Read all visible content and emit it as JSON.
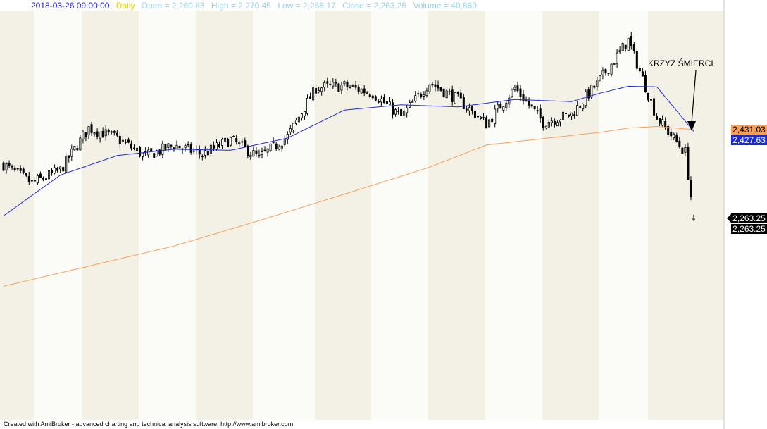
{
  "header": {
    "date": "2018-03-26 09:00:00",
    "interval": "Daily",
    "open": "Open = 2,260.83",
    "high": "High = 2,270.45",
    "low": "Low = 2,258.17",
    "close": "Close = 2,263.25",
    "volume": "Volume = 40,869"
  },
  "footer": "Created with AmiBroker - advanced charting and technical analysis software. http://www.amibroker.com",
  "annotation": "KRZYŻ ŚMIERCI",
  "price_labels": [
    {
      "name": "ma200",
      "text": "2,431.03",
      "value": 2431.03,
      "bg": "#f5a05a",
      "fg": "#000000"
    },
    {
      "name": "ma50",
      "text": "2,427.63",
      "value": 2427.63,
      "bg": "#1c2ad6",
      "fg": "#ffffff"
    },
    {
      "name": "close",
      "text": "2,263.25",
      "value": 2263.25,
      "bg": "#000000",
      "fg": "#ffffff"
    },
    {
      "name": "close-dup",
      "text": "2,263.25",
      "value": 2263.25,
      "bg": "#000000",
      "fg": "#ffffff"
    }
  ],
  "colors": {
    "background_light": "#fbfbf7",
    "background_dark": "#f3f1e6",
    "ma50": "#1c2ad6",
    "ma200": "#f5a05a",
    "candle": "#000000"
  },
  "chart_data": {
    "type": "candlestick",
    "x_range": [
      "2017-06",
      "2018-03"
    ],
    "y_visible_range": [
      2130,
      2650
    ],
    "series": [
      {
        "name": "price",
        "style": "candles",
        "x": [
          0,
          10,
          20,
          30,
          40,
          50,
          60,
          70,
          80,
          90,
          100,
          110,
          120,
          130,
          140,
          150,
          160,
          170,
          180,
          190,
          200,
          210,
          220,
          230,
          240,
          243
        ],
        "y": [
          2365,
          2330,
          2354,
          2434,
          2415,
          2380,
          2402,
          2384,
          2412,
          2378,
          2418,
          2510,
          2514,
          2500,
          2455,
          2520,
          2488,
          2442,
          2510,
          2445,
          2460,
          2525,
          2600,
          2454,
          2388,
          2263
        ]
      },
      {
        "name": "ma50",
        "style": "line",
        "x": [
          0,
          20,
          40,
          60,
          80,
          100,
          120,
          140,
          160,
          180,
          200,
          210,
          220,
          230,
          243
        ],
        "y": [
          2268,
          2345,
          2382,
          2394,
          2392,
          2415,
          2468,
          2478,
          2474,
          2488,
          2484,
          2500,
          2513,
          2512,
          2427.63
        ]
      },
      {
        "name": "ma200",
        "style": "line",
        "x": [
          0,
          30,
          60,
          90,
          120,
          150,
          170,
          190,
          210,
          220,
          230,
          243
        ],
        "y": [
          2135,
          2173,
          2211,
          2259,
          2309,
          2360,
          2402,
          2414,
          2426,
          2434,
          2437,
          2431.03
        ]
      }
    ]
  }
}
